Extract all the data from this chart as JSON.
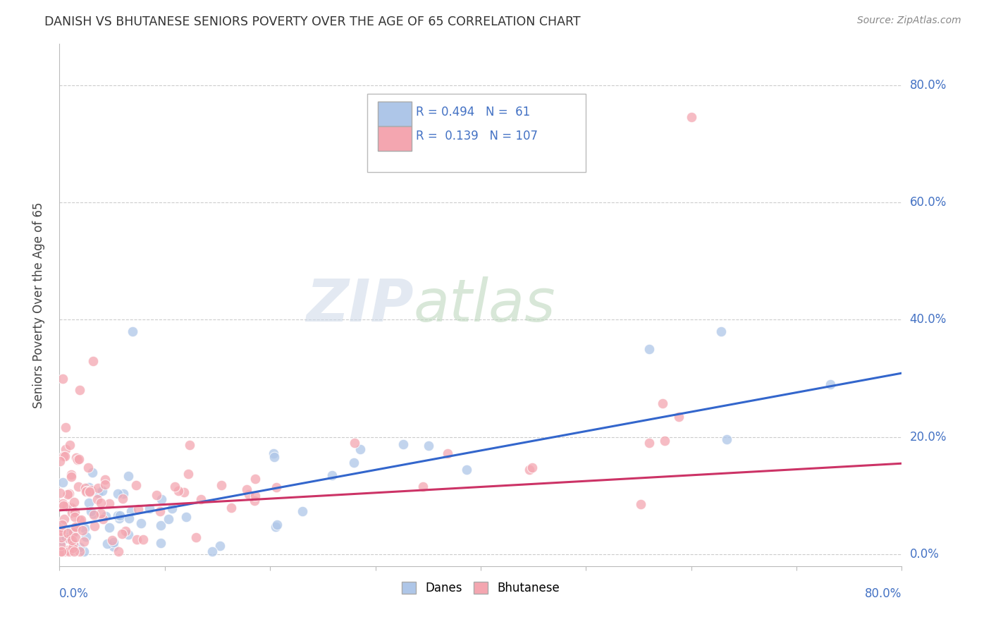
{
  "title": "DANISH VS BHUTANESE SENIORS POVERTY OVER THE AGE OF 65 CORRELATION CHART",
  "source": "Source: ZipAtlas.com",
  "ylabel": "Seniors Poverty Over the Age of 65",
  "xlim": [
    0.0,
    0.8
  ],
  "ylim": [
    -0.02,
    0.87
  ],
  "ytick_vals": [
    0.0,
    0.2,
    0.4,
    0.6,
    0.8
  ],
  "ytick_labels": [
    "0.0%",
    "20.0%",
    "40.0%",
    "60.0%",
    "80.0%"
  ],
  "danes_R": 0.494,
  "danes_N": 61,
  "bhutanese_R": 0.139,
  "bhutanese_N": 107,
  "danes_color": "#aec6e8",
  "bhutanese_color": "#f4a6b0",
  "danes_line_color": "#3366cc",
  "bhutanese_line_color": "#cc3366",
  "danes_trend_intercept": 0.045,
  "danes_trend_slope": 0.33,
  "bhutanese_trend_intercept": 0.075,
  "bhutanese_trend_slope": 0.1,
  "background_color": "#ffffff",
  "grid_color": "#cccccc",
  "label_color": "#4472c4",
  "title_color": "#333333",
  "source_color": "#888888"
}
